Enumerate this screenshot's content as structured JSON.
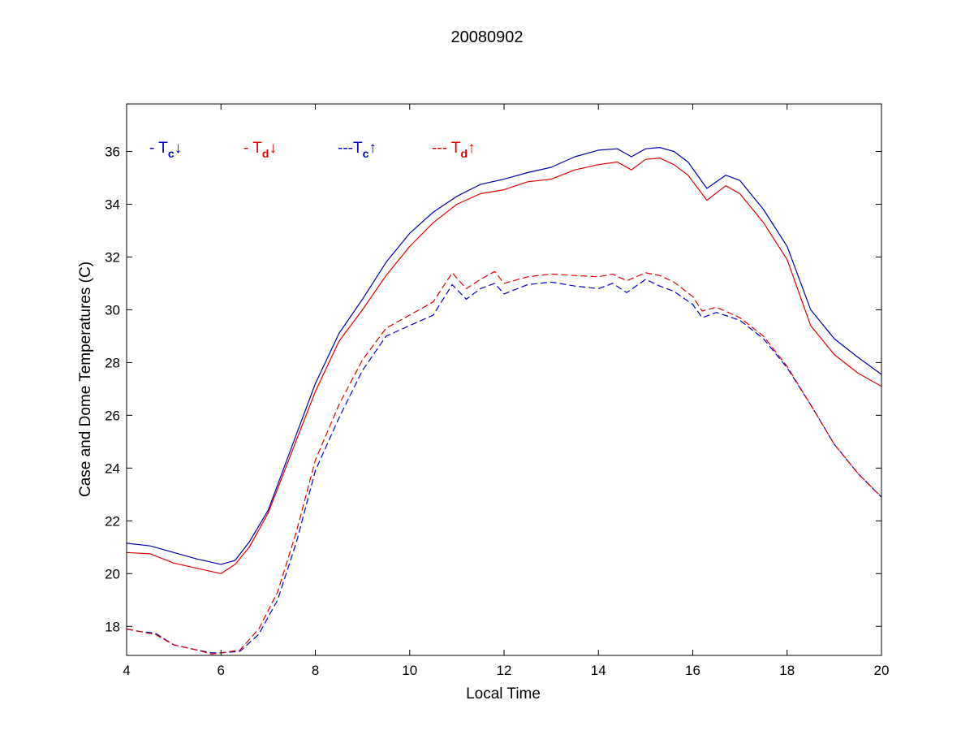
{
  "chart_data": {
    "type": "line",
    "title": "20080902",
    "xlabel": "Local Time",
    "ylabel": "Case and Dome Temperatures (C)",
    "xlim": [
      4,
      20
    ],
    "ylim": [
      16.9,
      37.8
    ],
    "xticks": [
      4,
      6,
      8,
      10,
      12,
      14,
      16,
      18,
      20
    ],
    "yticks": [
      18,
      20,
      22,
      24,
      26,
      28,
      30,
      32,
      34,
      36
    ],
    "xtick_labels": [
      "4",
      "6",
      "8",
      "10",
      "12",
      "14",
      "16",
      "18",
      "20"
    ],
    "ytick_labels": [
      "18",
      "20",
      "22",
      "24",
      "26",
      "28",
      "30",
      "32",
      "34",
      "36"
    ],
    "grid": false,
    "legend_position": "top-left",
    "legend": [
      {
        "prefix": "- T",
        "sub": "c",
        "arrow": "↓",
        "color": "#0000cc"
      },
      {
        "prefix": "- T",
        "sub": "d",
        "arrow": "↓",
        "color": "#dd0000"
      },
      {
        "prefix": "---T",
        "sub": "c",
        "arrow": "↑",
        "color": "#0000cc"
      },
      {
        "prefix": "--- T",
        "sub": "d",
        "arrow": "↑",
        "color": "#dd0000"
      }
    ],
    "series": [
      {
        "color": "#0000aa",
        "dash": "solid",
        "x": [
          4.0,
          4.5,
          5.0,
          5.5,
          6.0,
          6.3,
          6.6,
          7.0,
          7.5,
          8.0,
          8.5,
          9.0,
          9.5,
          10.0,
          10.5,
          11.0,
          11.5,
          12.0,
          12.5,
          13.0,
          13.5,
          14.0,
          14.4,
          14.7,
          15.0,
          15.3,
          15.6,
          15.9,
          16.3,
          16.7,
          17.0,
          17.5,
          18.0,
          18.5,
          19.0,
          19.5,
          20.0
        ],
        "y": [
          21.15,
          21.05,
          20.8,
          20.55,
          20.35,
          20.5,
          21.2,
          22.4,
          24.8,
          27.2,
          29.1,
          30.4,
          31.8,
          32.9,
          33.7,
          34.3,
          34.75,
          34.95,
          35.2,
          35.4,
          35.8,
          36.05,
          36.1,
          35.8,
          36.1,
          36.15,
          36.0,
          35.6,
          34.6,
          35.1,
          34.9,
          33.8,
          32.4,
          30.0,
          28.9,
          28.2,
          27.55
        ]
      },
      {
        "color": "#dd0000",
        "dash": "solid",
        "x": [
          4.0,
          4.5,
          5.0,
          5.5,
          6.0,
          6.3,
          6.6,
          7.0,
          7.5,
          8.0,
          8.5,
          9.0,
          9.5,
          10.0,
          10.5,
          11.0,
          11.5,
          12.0,
          12.5,
          13.0,
          13.5,
          14.0,
          14.4,
          14.7,
          15.0,
          15.3,
          15.6,
          15.9,
          16.3,
          16.7,
          17.0,
          17.5,
          18.0,
          18.5,
          19.0,
          19.5,
          20.0
        ],
        "y": [
          20.8,
          20.75,
          20.4,
          20.2,
          20.0,
          20.35,
          21.0,
          22.3,
          24.6,
          26.9,
          28.8,
          30.0,
          31.3,
          32.4,
          33.3,
          34.0,
          34.4,
          34.55,
          34.85,
          34.95,
          35.3,
          35.5,
          35.6,
          35.3,
          35.7,
          35.75,
          35.5,
          35.1,
          34.15,
          34.7,
          34.4,
          33.3,
          31.9,
          29.4,
          28.3,
          27.6,
          27.1
        ]
      },
      {
        "color": "#0000cc",
        "dash": "dashed",
        "x": [
          4.0,
          4.3,
          4.6,
          5.0,
          5.5,
          5.8,
          6.0,
          6.4,
          6.8,
          7.2,
          7.6,
          8.0,
          8.5,
          9.0,
          9.5,
          10.0,
          10.5,
          10.9,
          11.2,
          11.5,
          11.8,
          12.0,
          12.5,
          13.0,
          13.5,
          14.0,
          14.3,
          14.6,
          15.0,
          15.3,
          15.6,
          16.0,
          16.2,
          16.5,
          17.0,
          17.5,
          18.0,
          18.5,
          19.0,
          19.5,
          20.0
        ],
        "y": [
          17.9,
          17.8,
          17.75,
          17.3,
          17.1,
          17.0,
          17.0,
          17.05,
          17.7,
          19.0,
          21.2,
          23.9,
          25.9,
          27.7,
          29.0,
          29.4,
          29.8,
          30.95,
          30.4,
          30.8,
          31.0,
          30.6,
          30.95,
          31.05,
          30.9,
          30.8,
          31.0,
          30.65,
          31.15,
          30.9,
          30.7,
          30.2,
          29.7,
          29.9,
          29.6,
          28.9,
          27.8,
          26.4,
          24.9,
          23.8,
          22.9
        ]
      },
      {
        "color": "#dd0000",
        "dash": "dashed",
        "x": [
          4.0,
          4.3,
          4.6,
          5.0,
          5.5,
          5.8,
          6.0,
          6.4,
          6.8,
          7.2,
          7.6,
          8.0,
          8.5,
          9.0,
          9.5,
          10.0,
          10.5,
          10.9,
          11.2,
          11.5,
          11.8,
          12.0,
          12.5,
          13.0,
          13.5,
          14.0,
          14.3,
          14.6,
          15.0,
          15.3,
          15.6,
          16.0,
          16.2,
          16.5,
          17.0,
          17.5,
          18.0,
          18.5,
          19.0,
          19.5,
          20.0
        ],
        "y": [
          17.9,
          17.8,
          17.7,
          17.3,
          17.1,
          16.95,
          17.0,
          17.1,
          17.9,
          19.3,
          21.6,
          24.3,
          26.4,
          28.1,
          29.3,
          29.8,
          30.3,
          31.4,
          30.8,
          31.15,
          31.45,
          31.0,
          31.25,
          31.35,
          31.3,
          31.25,
          31.35,
          31.1,
          31.4,
          31.3,
          31.05,
          30.5,
          29.95,
          30.1,
          29.7,
          29.0,
          27.85,
          26.4,
          24.9,
          23.8,
          22.9
        ]
      }
    ]
  }
}
